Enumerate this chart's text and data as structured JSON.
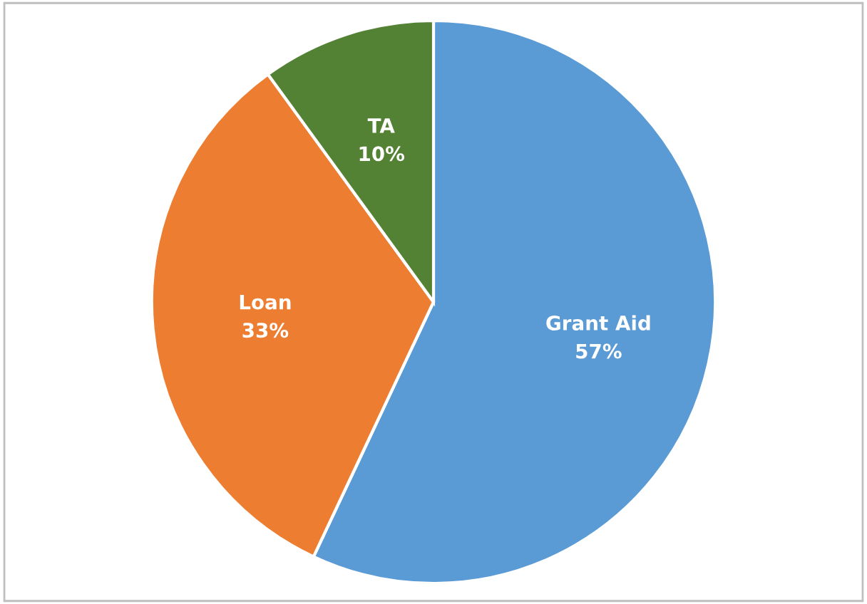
{
  "chart_data": {
    "type": "pie",
    "categories": [
      "Grant Aid",
      "Loan",
      "TA"
    ],
    "values": [
      57,
      33,
      10
    ],
    "value_labels": [
      "57%",
      "33%",
      "10%"
    ],
    "colors": [
      "#5b9bd5",
      "#ed7d31",
      "#548235"
    ]
  }
}
